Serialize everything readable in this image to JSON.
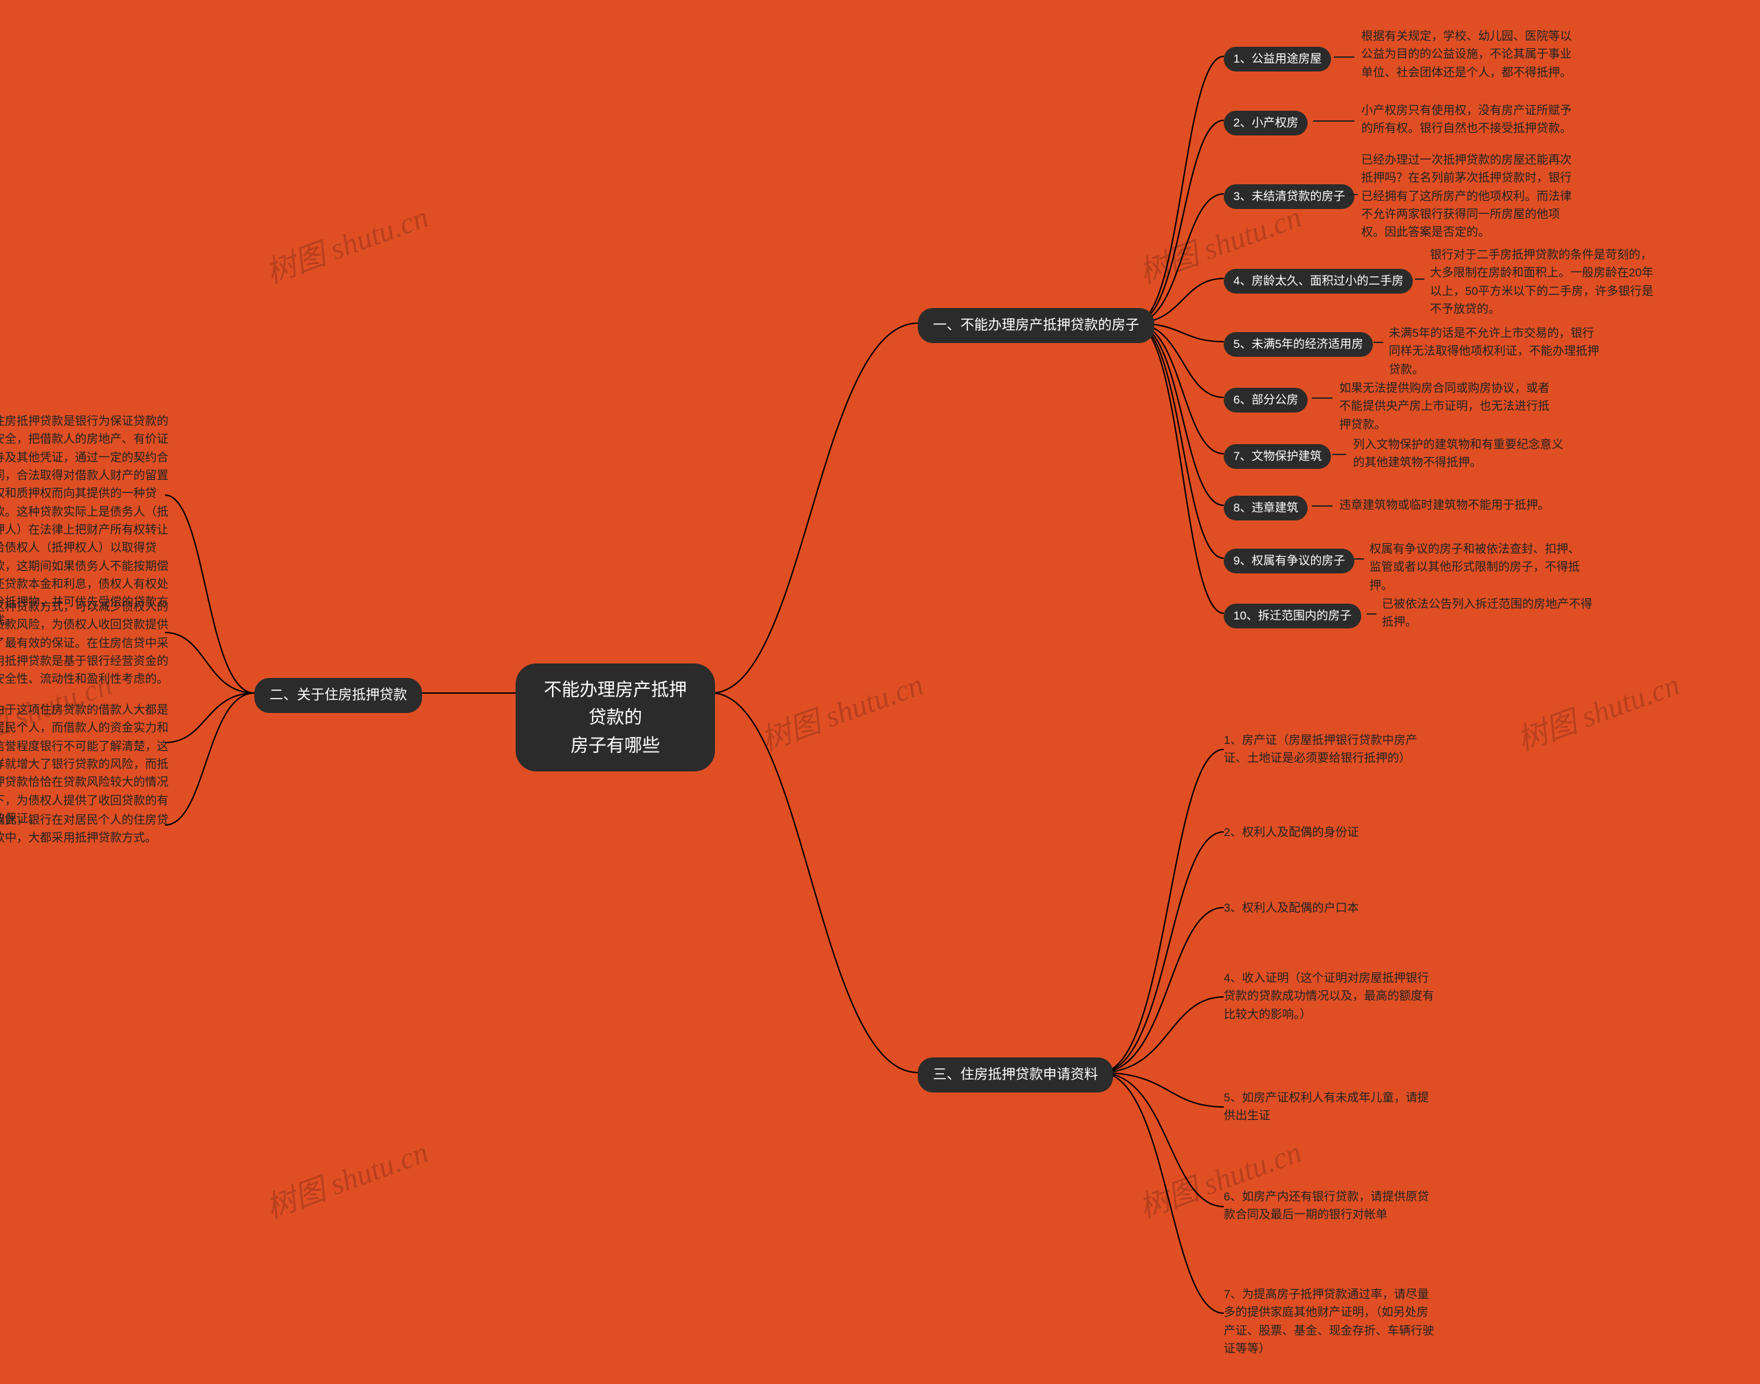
{
  "background_color": "#e04f23",
  "node_dark_color": "#2b2b2b",
  "line_color": "#000000",
  "text_color": "#222222",
  "center": {
    "text": "不能办理房产抵押贷款的\n房子有哪些"
  },
  "branches": {
    "b1": "一、不能办理房产抵押贷款的房子",
    "b2": "二、关于住房抵押贷款",
    "b3": "三、住房抵押贷款申请资料"
  },
  "b1_items": {
    "t1": "1、公益用途房屋",
    "d1": "根据有关规定，学校、幼儿园、医院等以公益为目的的公益设施，不论其属于事业单位、社会团体还是个人，都不得抵押。",
    "t2": "2、小产权房",
    "d2": "小产权房只有使用权，没有房产证所赋予的所有权。银行自然也不接受抵押贷款。",
    "t3": "3、未结清贷款的房子",
    "d3": "已经办理过一次抵押贷款的房屋还能再次抵押吗？在名列前茅次抵押贷款时，银行已经拥有了这所房产的他项权利。而法律不允许两家银行获得同一所房屋的他项权。因此答案是否定的。",
    "t4": "4、房龄太久、面积过小的二手房",
    "d4": "银行对于二手房抵押贷款的条件是苛刻的，大多限制在房龄和面积上。一般房龄在20年以上，50平方米以下的二手房，许多银行是不予放贷的。",
    "t5": "5、未满5年的经济适用房",
    "d5": "未满5年的话是不允许上市交易的，银行同样无法取得他项权利证，不能办理抵押贷款。",
    "t6": "6、部分公房",
    "d6": "如果无法提供购房合同或购房协议，或者不能提供央产房上市证明，也无法进行抵押贷款。",
    "t7": "7、文物保护建筑",
    "d7": "列入文物保护的建筑物和有重要纪念意义的其他建筑物不得抵押。",
    "t8": "8、违章建筑",
    "d8": "违章建筑物或临时建筑物不能用于抵押。",
    "t9": "9、权属有争议的房子",
    "d9": "权属有争议的房子和被依法查封、扣押、监管或者以其他形式限制的房子，不得抵押。",
    "t10": "10、拆迁范围内的房子",
    "d10": "已被依法公告列入拆迁范围的房地产不得抵押。"
  },
  "b2_items": {
    "d1": "住房抵押贷款是银行为保证贷款的安全，把借款人的房地产、有价证券及其他凭证，通过一定的契约合同，合法取得对借款人财产的留置权和质押权而向其提供的一种贷款。这种贷款实际上是债务人（抵押人）在法律上把财产所有权转让给债权人（抵押权人）以取得贷款，这期间如果债务人不能按期偿还贷款本金和利息，债权人有权处分抵押物，并可优先受偿的贷款方式。",
    "d2": "这种贷款方式，可以减少债权人的贷款风险，为债权人收回贷款提供了最有效的保证。在住房信贷中采用抵押贷款是基于银行经营资金的安全性、流动性和盈利性考虑的。",
    "d3": "由于这项住房贷款的借款人大都是居民个人，而借款人的资金实力和信誉程度银行不可能了解清楚，这样就增大了银行贷款的风险，而抵押贷款恰恰在贷款风险较大的情况下，为债权人提供了收回贷款的有效保证。",
    "d4": "因此，银行在对居民个人的住房贷款中，大都采用抵押贷款方式。"
  },
  "b3_items": {
    "d1": "1、房产证（房屋抵押银行贷款中房产证、土地证是必须要给银行抵押的）",
    "d2": "2、权利人及配偶的身份证",
    "d3": "3、权利人及配偶的户口本",
    "d4": "4、收入证明（这个证明对房屋抵押银行贷款的贷款成功情况以及，最高的额度有比较大的影响。）",
    "d5": "5、如房产证权利人有未成年儿童，请提供出生证",
    "d6": "6、如房产内还有银行贷款，请提供原贷款合同及最后一期的银行对帐单",
    "d7": "7、为提高房子抵押贷款通过率，请尽量多的提供家庭其他财产证明，（如另处房产证、股票、基金、现金存折、车辆行驶证等等）"
  },
  "watermark_text": "树图 shutu.cn"
}
